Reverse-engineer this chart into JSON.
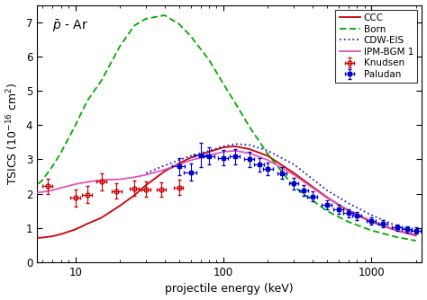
{
  "title": "$\\mathregular{\\bar{p}}$ - Ar",
  "xlabel": "projectile energy (keV)",
  "ylabel": "TSICS (10$^{-16}$ cm$^2$)",
  "xlim": [
    5.5,
    2200
  ],
  "ylim": [
    0.0,
    7.5
  ],
  "yticks": [
    0.0,
    1.0,
    2.0,
    3.0,
    4.0,
    5.0,
    6.0,
    7.0
  ],
  "CCC_color": "#cc0000",
  "Born_color": "#00aa00",
  "CDWEIS_color": "#2222cc",
  "IPMBGM_color": "#dd55bb",
  "Knudsen_color": "#cc0000",
  "Paludan_color": "#0000cc",
  "CCC_x": [
    5,
    6,
    7,
    8,
    10,
    12,
    15,
    20,
    25,
    30,
    40,
    50,
    60,
    80,
    100,
    120,
    150,
    200,
    300,
    500,
    700,
    1000,
    1500,
    2000
  ],
  "CCC_y": [
    0.7,
    0.72,
    0.76,
    0.82,
    0.96,
    1.12,
    1.3,
    1.65,
    1.95,
    2.25,
    2.65,
    2.88,
    3.05,
    3.22,
    3.35,
    3.38,
    3.3,
    3.1,
    2.6,
    1.9,
    1.5,
    1.18,
    0.92,
    0.78
  ],
  "Born_x": [
    5,
    6,
    7,
    8,
    10,
    12,
    15,
    20,
    25,
    30,
    40,
    50,
    60,
    80,
    100,
    120,
    150,
    200,
    300,
    500,
    700,
    1000,
    1500,
    2000
  ],
  "Born_y": [
    2.1,
    2.4,
    2.8,
    3.2,
    4.0,
    4.7,
    5.3,
    6.3,
    6.9,
    7.1,
    7.2,
    6.95,
    6.6,
    5.9,
    5.2,
    4.65,
    3.95,
    3.15,
    2.2,
    1.5,
    1.18,
    0.93,
    0.73,
    0.63
  ],
  "CDWEIS_x": [
    30,
    40,
    50,
    60,
    80,
    100,
    120,
    150,
    200,
    300,
    500,
    700,
    1000,
    1500,
    2000
  ],
  "CDWEIS_y": [
    2.6,
    2.82,
    2.98,
    3.1,
    3.25,
    3.38,
    3.45,
    3.42,
    3.25,
    2.85,
    2.1,
    1.72,
    1.38,
    1.05,
    0.88
  ],
  "IPMBGM_x": [
    5,
    6,
    7,
    8,
    10,
    12,
    15,
    20,
    25,
    30,
    40,
    50,
    60,
    80,
    100,
    120,
    150,
    200,
    300,
    500,
    700,
    1000,
    1500,
    2000
  ],
  "IPMBGM_y": [
    2.02,
    2.05,
    2.1,
    2.17,
    2.28,
    2.34,
    2.4,
    2.42,
    2.48,
    2.55,
    2.7,
    2.85,
    2.97,
    3.12,
    3.22,
    3.25,
    3.18,
    2.98,
    2.55,
    1.88,
    1.52,
    1.2,
    0.93,
    0.8
  ],
  "Knudsen_x": [
    6.5,
    10,
    12,
    15,
    19,
    25,
    30,
    38,
    50
  ],
  "Knudsen_y": [
    2.22,
    1.88,
    1.97,
    2.35,
    2.08,
    2.16,
    2.13,
    2.12,
    2.18
  ],
  "Knudsen_ex": [
    0.5,
    0.8,
    0.9,
    1.1,
    1.4,
    1.8,
    2.2,
    2.7,
    3.5
  ],
  "Knudsen_ey": [
    0.22,
    0.25,
    0.25,
    0.25,
    0.22,
    0.22,
    0.22,
    0.22,
    0.22
  ],
  "Paludan_x": [
    50,
    60,
    70,
    80,
    100,
    120,
    150,
    175,
    200,
    250,
    300,
    350,
    400,
    500,
    600,
    700,
    800,
    1000,
    1200,
    1500,
    1750,
    2000
  ],
  "Paludan_y": [
    2.8,
    2.63,
    3.12,
    3.1,
    3.05,
    3.08,
    3.0,
    2.85,
    2.72,
    2.6,
    2.3,
    2.1,
    1.92,
    1.68,
    1.55,
    1.43,
    1.35,
    1.21,
    1.12,
    1.02,
    0.96,
    0.92
  ],
  "Paludan_ey": [
    0.25,
    0.25,
    0.35,
    0.25,
    0.22,
    0.22,
    0.22,
    0.2,
    0.18,
    0.17,
    0.17,
    0.15,
    0.15,
    0.13,
    0.13,
    0.12,
    0.12,
    0.1,
    0.1,
    0.09,
    0.09,
    0.09
  ],
  "Paludan_ex_lo": [
    5,
    6,
    7,
    7,
    8,
    9,
    12,
    13,
    15,
    18,
    22,
    26,
    30,
    38,
    45,
    52,
    60,
    75,
    90,
    115,
    135,
    155
  ],
  "Paludan_ex_hi": [
    5,
    6,
    7,
    7,
    8,
    9,
    12,
    13,
    15,
    18,
    22,
    26,
    30,
    38,
    45,
    52,
    60,
    75,
    90,
    115,
    135,
    155
  ],
  "bg_color": "#f5f5f0"
}
